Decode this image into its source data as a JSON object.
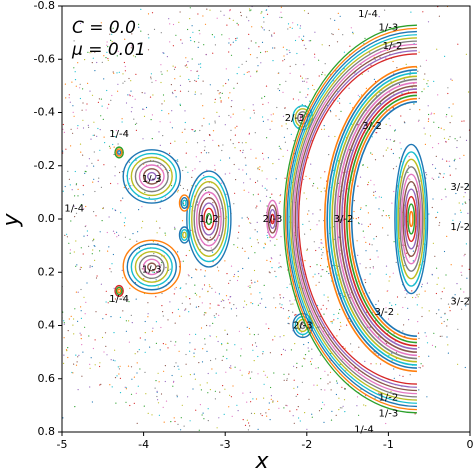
{
  "chart_data": {
    "type": "scatter",
    "xlabel": "x",
    "ylabel": "y",
    "legend_lines": [
      "C = 0.0",
      "μ = 0.01"
    ],
    "xlim": [
      -5,
      0
    ],
    "ylim": [
      0.8,
      -0.8
    ],
    "xticks": [
      -5,
      -4,
      -3,
      -2,
      -1,
      0
    ],
    "yticks": [
      -0.8,
      -0.6,
      -0.4,
      -0.2,
      {
        "value": 0,
        "label": "0.0"
      },
      0.2,
      0.4,
      0.6,
      0.8
    ],
    "annotations": [
      "1/-4",
      "1/-3",
      "1/-2",
      "2/-3",
      "1/-4",
      "1/-3",
      "3/-2",
      "3/-2",
      "1/-4",
      "1/-2",
      "2/-3",
      "3/-2",
      "1/-2",
      "1/-3",
      "1/-4",
      "3/-2",
      "3/-2",
      "2/-3",
      "1/-2",
      "1/-3",
      "1/-4"
    ]
  }
}
